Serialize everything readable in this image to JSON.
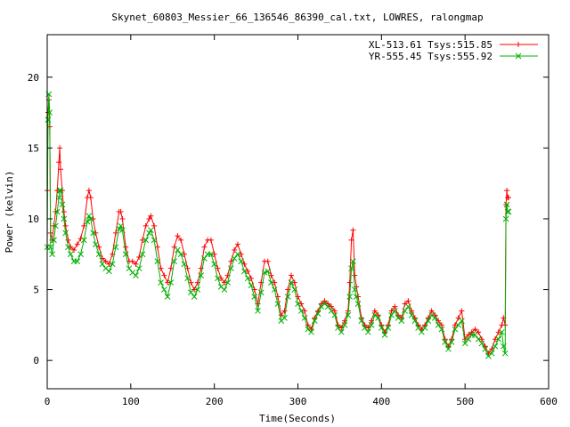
{
  "chart_data": {
    "type": "line",
    "title": "Skynet_60803_Messier_66_136546_86390_cal.txt, LOWRES, ralongmap",
    "xlabel": "Time(Seconds)",
    "ylabel": "Power (kelvin)",
    "xlim": [
      0,
      600
    ],
    "ylim": [
      -2,
      23
    ],
    "x_ticks": [
      0,
      100,
      200,
      300,
      400,
      500,
      600
    ],
    "y_ticks": [
      0,
      5,
      10,
      15,
      20
    ],
    "grid": false,
    "legend_position": "top-right",
    "series": [
      {
        "name": "XL-513.61 Tsys:515.85",
        "color": "#ff0000",
        "marker": "plus",
        "points": [
          [
            0,
            12
          ],
          [
            1,
            17.5
          ],
          [
            2,
            18.4
          ],
          [
            3,
            16.5
          ],
          [
            4,
            9
          ],
          [
            6,
            8.5
          ],
          [
            8,
            9.5
          ],
          [
            10,
            10.5
          ],
          [
            12,
            12
          ],
          [
            14,
            14
          ],
          [
            15,
            15
          ],
          [
            16,
            13.5
          ],
          [
            18,
            12
          ],
          [
            20,
            10.5
          ],
          [
            22,
            9.5
          ],
          [
            25,
            8.5
          ],
          [
            28,
            8
          ],
          [
            32,
            7.8
          ],
          [
            36,
            8.2
          ],
          [
            40,
            8.6
          ],
          [
            44,
            9.5
          ],
          [
            48,
            11.5
          ],
          [
            50,
            12
          ],
          [
            52,
            11.5
          ],
          [
            55,
            10
          ],
          [
            58,
            9
          ],
          [
            62,
            8
          ],
          [
            66,
            7.2
          ],
          [
            70,
            7
          ],
          [
            74,
            6.8
          ],
          [
            78,
            7.5
          ],
          [
            82,
            9
          ],
          [
            86,
            10.5
          ],
          [
            88,
            10.5
          ],
          [
            90,
            10
          ],
          [
            94,
            8
          ],
          [
            98,
            7
          ],
          [
            102,
            7
          ],
          [
            106,
            6.8
          ],
          [
            110,
            7.3
          ],
          [
            114,
            8.5
          ],
          [
            118,
            9.5
          ],
          [
            122,
            10
          ],
          [
            124,
            10.2
          ],
          [
            128,
            9.5
          ],
          [
            132,
            8
          ],
          [
            136,
            6.5
          ],
          [
            140,
            6
          ],
          [
            144,
            5.5
          ],
          [
            148,
            6.5
          ],
          [
            152,
            8
          ],
          [
            156,
            8.8
          ],
          [
            160,
            8.5
          ],
          [
            164,
            7.5
          ],
          [
            168,
            6.5
          ],
          [
            172,
            5.5
          ],
          [
            176,
            5
          ],
          [
            180,
            5.5
          ],
          [
            184,
            6.5
          ],
          [
            188,
            8
          ],
          [
            192,
            8.5
          ],
          [
            196,
            8.5
          ],
          [
            200,
            7.5
          ],
          [
            204,
            6.5
          ],
          [
            208,
            5.8
          ],
          [
            212,
            5.5
          ],
          [
            216,
            6
          ],
          [
            220,
            7
          ],
          [
            224,
            7.8
          ],
          [
            228,
            8.2
          ],
          [
            232,
            7.5
          ],
          [
            236,
            6.8
          ],
          [
            240,
            6.3
          ],
          [
            244,
            5.8
          ],
          [
            248,
            5
          ],
          [
            252,
            4
          ],
          [
            256,
            5.5
          ],
          [
            260,
            7
          ],
          [
            264,
            7
          ],
          [
            268,
            6
          ],
          [
            272,
            5.5
          ],
          [
            276,
            4.5
          ],
          [
            280,
            3.2
          ],
          [
            284,
            3.5
          ],
          [
            288,
            5
          ],
          [
            292,
            6
          ],
          [
            296,
            5.5
          ],
          [
            300,
            4.5
          ],
          [
            304,
            4
          ],
          [
            308,
            3.5
          ],
          [
            312,
            2.5
          ],
          [
            316,
            2.2
          ],
          [
            320,
            3
          ],
          [
            324,
            3.5
          ],
          [
            328,
            4
          ],
          [
            332,
            4.2
          ],
          [
            336,
            4
          ],
          [
            340,
            3.8
          ],
          [
            344,
            3.5
          ],
          [
            348,
            2.5
          ],
          [
            352,
            2.3
          ],
          [
            356,
            2.8
          ],
          [
            360,
            3.5
          ],
          [
            362,
            5.5
          ],
          [
            364,
            8.5
          ],
          [
            366,
            9.2
          ],
          [
            368,
            6
          ],
          [
            370,
            5.2
          ],
          [
            372,
            4.5
          ],
          [
            376,
            3
          ],
          [
            380,
            2.5
          ],
          [
            384,
            2.3
          ],
          [
            388,
            2.8
          ],
          [
            392,
            3.5
          ],
          [
            396,
            3.2
          ],
          [
            400,
            2.5
          ],
          [
            404,
            2
          ],
          [
            408,
            2.5
          ],
          [
            412,
            3.5
          ],
          [
            416,
            3.8
          ],
          [
            420,
            3.2
          ],
          [
            424,
            3
          ],
          [
            428,
            4
          ],
          [
            432,
            4.2
          ],
          [
            436,
            3.5
          ],
          [
            440,
            3
          ],
          [
            444,
            2.5
          ],
          [
            448,
            2.2
          ],
          [
            452,
            2.5
          ],
          [
            456,
            3
          ],
          [
            460,
            3.5
          ],
          [
            464,
            3.2
          ],
          [
            468,
            2.8
          ],
          [
            472,
            2.5
          ],
          [
            476,
            1.5
          ],
          [
            480,
            1
          ],
          [
            484,
            1.5
          ],
          [
            488,
            2.5
          ],
          [
            492,
            3
          ],
          [
            496,
            3.5
          ],
          [
            500,
            1.5
          ],
          [
            504,
            1.8
          ],
          [
            508,
            2
          ],
          [
            512,
            2.2
          ],
          [
            516,
            2
          ],
          [
            520,
            1.5
          ],
          [
            524,
            1
          ],
          [
            528,
            0.5
          ],
          [
            532,
            0.8
          ],
          [
            536,
            1.5
          ],
          [
            540,
            2
          ],
          [
            544,
            2.5
          ],
          [
            546,
            3
          ],
          [
            548,
            2.5
          ],
          [
            549,
            11
          ],
          [
            550,
            12
          ],
          [
            551,
            11.5
          ],
          [
            552,
            11.5
          ]
        ]
      },
      {
        "name": "YR-555.45 Tsys:555.92",
        "color": "#00b000",
        "marker": "x",
        "points": [
          [
            0,
            8
          ],
          [
            1,
            17
          ],
          [
            2,
            18.8
          ],
          [
            3,
            17.5
          ],
          [
            4,
            8
          ],
          [
            6,
            7.5
          ],
          [
            8,
            8.5
          ],
          [
            10,
            9.5
          ],
          [
            12,
            10.5
          ],
          [
            14,
            11.5
          ],
          [
            15,
            12
          ],
          [
            16,
            12
          ],
          [
            18,
            11
          ],
          [
            20,
            10
          ],
          [
            22,
            9
          ],
          [
            25,
            8
          ],
          [
            28,
            7.5
          ],
          [
            32,
            7
          ],
          [
            36,
            7
          ],
          [
            40,
            7.5
          ],
          [
            44,
            8.5
          ],
          [
            48,
            9.8
          ],
          [
            50,
            10.2
          ],
          [
            52,
            10
          ],
          [
            55,
            9
          ],
          [
            58,
            8.2
          ],
          [
            62,
            7.5
          ],
          [
            66,
            6.8
          ],
          [
            70,
            6.5
          ],
          [
            74,
            6.3
          ],
          [
            78,
            6.8
          ],
          [
            82,
            8
          ],
          [
            86,
            9.3
          ],
          [
            88,
            9.5
          ],
          [
            90,
            9.2
          ],
          [
            94,
            7.5
          ],
          [
            98,
            6.5
          ],
          [
            102,
            6.2
          ],
          [
            106,
            6
          ],
          [
            110,
            6.5
          ],
          [
            114,
            7.5
          ],
          [
            118,
            8.5
          ],
          [
            122,
            9
          ],
          [
            124,
            9.2
          ],
          [
            128,
            8.5
          ],
          [
            132,
            7
          ],
          [
            136,
            5.5
          ],
          [
            140,
            5
          ],
          [
            144,
            4.5
          ],
          [
            148,
            5.5
          ],
          [
            152,
            7
          ],
          [
            156,
            7.8
          ],
          [
            160,
            7.5
          ],
          [
            164,
            6.8
          ],
          [
            168,
            5.8
          ],
          [
            172,
            4.8
          ],
          [
            176,
            4.5
          ],
          [
            180,
            5
          ],
          [
            184,
            6
          ],
          [
            188,
            7.2
          ],
          [
            192,
            7.5
          ],
          [
            196,
            7.5
          ],
          [
            200,
            6.8
          ],
          [
            204,
            5.8
          ],
          [
            208,
            5.2
          ],
          [
            212,
            5
          ],
          [
            216,
            5.5
          ],
          [
            220,
            6.5
          ],
          [
            224,
            7.2
          ],
          [
            228,
            7.5
          ],
          [
            232,
            7
          ],
          [
            236,
            6.3
          ],
          [
            240,
            5.8
          ],
          [
            244,
            5.3
          ],
          [
            248,
            4.5
          ],
          [
            252,
            3.5
          ],
          [
            256,
            4.8
          ],
          [
            260,
            6.2
          ],
          [
            264,
            6.3
          ],
          [
            268,
            5.5
          ],
          [
            272,
            5
          ],
          [
            276,
            4
          ],
          [
            280,
            2.8
          ],
          [
            284,
            3
          ],
          [
            288,
            4.5
          ],
          [
            292,
            5.5
          ],
          [
            296,
            5
          ],
          [
            300,
            4
          ],
          [
            304,
            3.5
          ],
          [
            308,
            3
          ],
          [
            312,
            2.2
          ],
          [
            316,
            2
          ],
          [
            320,
            2.8
          ],
          [
            324,
            3.3
          ],
          [
            328,
            3.8
          ],
          [
            332,
            4
          ],
          [
            336,
            3.8
          ],
          [
            340,
            3.5
          ],
          [
            344,
            3.2
          ],
          [
            348,
            2.3
          ],
          [
            352,
            2
          ],
          [
            356,
            2.5
          ],
          [
            360,
            3.2
          ],
          [
            362,
            4.5
          ],
          [
            364,
            6.5
          ],
          [
            366,
            7
          ],
          [
            368,
            5
          ],
          [
            370,
            4.5
          ],
          [
            372,
            4
          ],
          [
            376,
            2.8
          ],
          [
            380,
            2.3
          ],
          [
            384,
            2
          ],
          [
            388,
            2.5
          ],
          [
            392,
            3.2
          ],
          [
            396,
            3
          ],
          [
            400,
            2.3
          ],
          [
            404,
            1.8
          ],
          [
            408,
            2.3
          ],
          [
            412,
            3.2
          ],
          [
            416,
            3.5
          ],
          [
            420,
            3
          ],
          [
            424,
            2.8
          ],
          [
            428,
            3.5
          ],
          [
            432,
            3.8
          ],
          [
            436,
            3.2
          ],
          [
            440,
            2.8
          ],
          [
            444,
            2.3
          ],
          [
            448,
            2
          ],
          [
            452,
            2.3
          ],
          [
            456,
            2.8
          ],
          [
            460,
            3.2
          ],
          [
            464,
            3
          ],
          [
            468,
            2.5
          ],
          [
            472,
            2.2
          ],
          [
            476,
            1.3
          ],
          [
            480,
            0.8
          ],
          [
            484,
            1.3
          ],
          [
            488,
            2.2
          ],
          [
            492,
            2.5
          ],
          [
            496,
            2.8
          ],
          [
            500,
            1.2
          ],
          [
            504,
            1.5
          ],
          [
            508,
            1.8
          ],
          [
            512,
            1.8
          ],
          [
            516,
            1.5
          ],
          [
            520,
            1.2
          ],
          [
            524,
            0.8
          ],
          [
            528,
            0.3
          ],
          [
            532,
            0.5
          ],
          [
            536,
            1
          ],
          [
            540,
            1.5
          ],
          [
            544,
            2
          ],
          [
            546,
            1
          ],
          [
            548,
            0.5
          ],
          [
            549,
            10
          ],
          [
            550,
            11
          ],
          [
            551,
            10.5
          ],
          [
            552,
            10.5
          ]
        ]
      }
    ]
  }
}
